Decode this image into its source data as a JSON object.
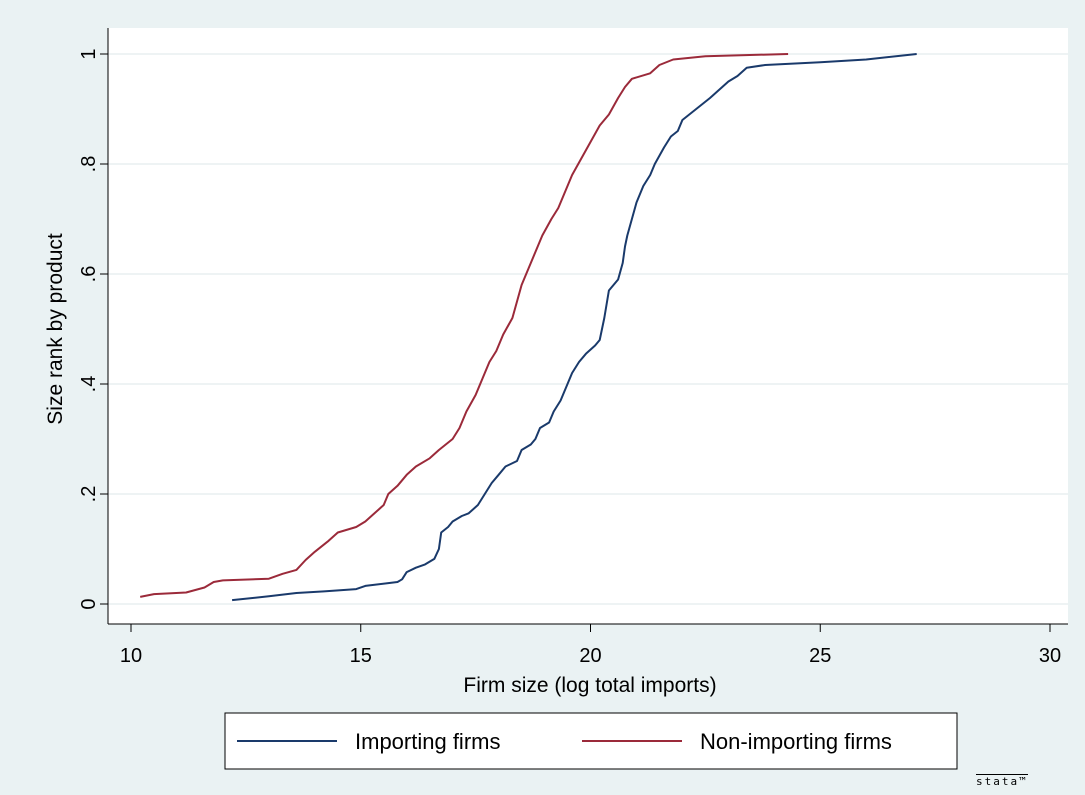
{
  "chart_data": {
    "type": "line",
    "xlabel": "Firm size (log total imports)",
    "ylabel": "Size rank by product",
    "xlim": [
      10,
      30
    ],
    "ylim": [
      0,
      1
    ],
    "xticks": [
      10,
      15,
      20,
      25,
      30
    ],
    "xtick_labels": [
      "10",
      "15",
      "20",
      "25",
      "30"
    ],
    "yticks": [
      0,
      0.2,
      0.4,
      0.6,
      0.8,
      1
    ],
    "ytick_labels": [
      "0",
      ".2",
      ".4",
      ".6",
      ".8",
      "1"
    ],
    "grid": "horizontal",
    "legend_position": "bottom",
    "series": [
      {
        "name": "Importing firms",
        "color": "#1a3a6b",
        "points": [
          [
            12.2,
            0.007
          ],
          [
            13.0,
            0.014
          ],
          [
            13.6,
            0.02
          ],
          [
            14.2,
            0.023
          ],
          [
            14.9,
            0.027
          ],
          [
            15.1,
            0.033
          ],
          [
            15.6,
            0.038
          ],
          [
            15.8,
            0.04
          ],
          [
            15.9,
            0.045
          ],
          [
            16.0,
            0.058
          ],
          [
            16.2,
            0.066
          ],
          [
            16.4,
            0.072
          ],
          [
            16.6,
            0.082
          ],
          [
            16.7,
            0.1
          ],
          [
            16.75,
            0.13
          ],
          [
            16.9,
            0.14
          ],
          [
            17.0,
            0.15
          ],
          [
            17.2,
            0.16
          ],
          [
            17.35,
            0.165
          ],
          [
            17.55,
            0.18
          ],
          [
            17.7,
            0.2
          ],
          [
            17.85,
            0.22
          ],
          [
            18.0,
            0.235
          ],
          [
            18.15,
            0.25
          ],
          [
            18.4,
            0.26
          ],
          [
            18.5,
            0.28
          ],
          [
            18.7,
            0.29
          ],
          [
            18.8,
            0.3
          ],
          [
            18.9,
            0.32
          ],
          [
            19.1,
            0.33
          ],
          [
            19.2,
            0.35
          ],
          [
            19.35,
            0.37
          ],
          [
            19.5,
            0.4
          ],
          [
            19.6,
            0.42
          ],
          [
            19.75,
            0.44
          ],
          [
            19.9,
            0.455
          ],
          [
            20.1,
            0.47
          ],
          [
            20.2,
            0.48
          ],
          [
            20.3,
            0.52
          ],
          [
            20.4,
            0.57
          ],
          [
            20.6,
            0.59
          ],
          [
            20.7,
            0.62
          ],
          [
            20.75,
            0.65
          ],
          [
            20.8,
            0.67
          ],
          [
            20.9,
            0.7
          ],
          [
            21.0,
            0.73
          ],
          [
            21.15,
            0.76
          ],
          [
            21.3,
            0.78
          ],
          [
            21.4,
            0.8
          ],
          [
            21.6,
            0.83
          ],
          [
            21.75,
            0.85
          ],
          [
            21.9,
            0.86
          ],
          [
            22.0,
            0.88
          ],
          [
            22.3,
            0.9
          ],
          [
            22.6,
            0.92
          ],
          [
            22.8,
            0.935
          ],
          [
            23.0,
            0.95
          ],
          [
            23.2,
            0.96
          ],
          [
            23.4,
            0.975
          ],
          [
            23.8,
            0.98
          ],
          [
            25.0,
            0.985
          ],
          [
            26.0,
            0.99
          ],
          [
            27.1,
            1.0
          ]
        ]
      },
      {
        "name": "Non-importing firms",
        "color": "#9b2a3a",
        "points": [
          [
            10.2,
            0.013
          ],
          [
            10.5,
            0.018
          ],
          [
            11.2,
            0.021
          ],
          [
            11.6,
            0.03
          ],
          [
            11.8,
            0.04
          ],
          [
            12.0,
            0.043
          ],
          [
            13.0,
            0.046
          ],
          [
            13.3,
            0.055
          ],
          [
            13.6,
            0.062
          ],
          [
            13.8,
            0.08
          ],
          [
            14.0,
            0.095
          ],
          [
            14.3,
            0.115
          ],
          [
            14.5,
            0.13
          ],
          [
            14.9,
            0.14
          ],
          [
            15.1,
            0.15
          ],
          [
            15.3,
            0.165
          ],
          [
            15.5,
            0.18
          ],
          [
            15.6,
            0.2
          ],
          [
            15.8,
            0.215
          ],
          [
            16.0,
            0.235
          ],
          [
            16.2,
            0.25
          ],
          [
            16.5,
            0.265
          ],
          [
            16.7,
            0.28
          ],
          [
            17.0,
            0.3
          ],
          [
            17.15,
            0.32
          ],
          [
            17.3,
            0.35
          ],
          [
            17.5,
            0.38
          ],
          [
            17.65,
            0.41
          ],
          [
            17.8,
            0.44
          ],
          [
            17.95,
            0.46
          ],
          [
            18.1,
            0.49
          ],
          [
            18.3,
            0.52
          ],
          [
            18.4,
            0.55
          ],
          [
            18.5,
            0.58
          ],
          [
            18.65,
            0.61
          ],
          [
            18.8,
            0.64
          ],
          [
            18.95,
            0.67
          ],
          [
            19.15,
            0.7
          ],
          [
            19.3,
            0.72
          ],
          [
            19.45,
            0.75
          ],
          [
            19.6,
            0.78
          ],
          [
            19.8,
            0.81
          ],
          [
            20.0,
            0.84
          ],
          [
            20.2,
            0.87
          ],
          [
            20.4,
            0.89
          ],
          [
            20.6,
            0.92
          ],
          [
            20.75,
            0.94
          ],
          [
            20.9,
            0.955
          ],
          [
            21.3,
            0.965
          ],
          [
            21.5,
            0.98
          ],
          [
            21.8,
            0.99
          ],
          [
            22.5,
            0.996
          ],
          [
            24.3,
            1.0
          ]
        ]
      }
    ]
  },
  "branding": {
    "watermark": "stata™"
  }
}
